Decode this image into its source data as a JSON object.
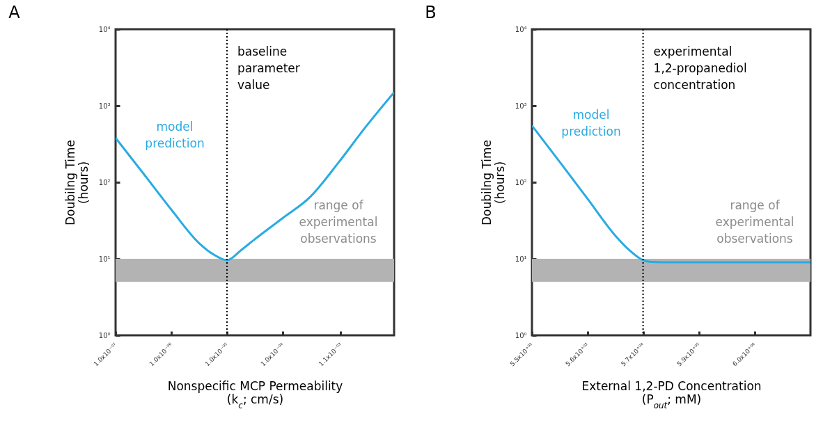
{
  "chart_data": [
    {
      "type": "line",
      "title": "A",
      "xlabel": "Nonspecific MCP Permeability\n(k$_{c}$; cm/s)",
      "ylabel": "Doubilng Time\n(hours)",
      "log": "xy",
      "x": [
        1e-07,
        3.16e-07,
        1e-06,
        3.16e-06,
        5.6e-06,
        1e-05,
        1.8e-05,
        3.16e-05,
        0.0001,
        0.000316,
        0.001,
        0.00316,
        0.01
      ],
      "series": [
        {
          "name": "model prediction",
          "color": "#29abe2",
          "values": [
            380,
            130,
            44,
            16,
            11.5,
            9.6,
            13,
            18,
            34,
            65,
            180,
            540,
            1500
          ]
        }
      ],
      "xlim": [
        1e-07,
        0.01
      ],
      "ylim": [
        1,
        10000
      ],
      "xticks": [
        {
          "value": 1e-07,
          "label": "1.0x10⁻⁰⁷"
        },
        {
          "value": 1e-06,
          "label": "1.0x10⁻⁰⁶"
        },
        {
          "value": 1e-05,
          "label": "1.0x10⁻⁰⁵"
        },
        {
          "value": 0.0001,
          "label": "1.0x10⁻⁰⁴"
        },
        {
          "value": 0.0011,
          "label": "1.1x10⁻⁰³"
        }
      ],
      "yticks": [
        {
          "value": 1,
          "label": "10⁰"
        },
        {
          "value": 10,
          "label": "10¹"
        },
        {
          "value": 100,
          "label": "10²"
        },
        {
          "value": 1000,
          "label": "10³"
        },
        {
          "value": 10000,
          "label": "10⁴"
        }
      ],
      "bands": [
        {
          "axis": "y",
          "from": 5,
          "to": 10,
          "label": "range of\nexperimental\nobservations",
          "color": "#b3b3b3"
        }
      ],
      "ref_lines": [
        {
          "axis": "x",
          "value": 1e-05,
          "label": "baseline\nparameter\nvalue",
          "line_style": "dotted"
        }
      ]
    },
    {
      "type": "line",
      "title": "B",
      "xlabel": "External 1,2-PD Concentration\n(P$_{out}$; mM)",
      "ylabel": "Doubilng Time\n(hours)",
      "log": "xy",
      "x": [
        550,
        1800,
        5600,
        18000,
        32000,
        57000,
        80000,
        200000,
        1000000,
        62000000.0
      ],
      "series": [
        {
          "name": "model prediction",
          "color": "#29abe2",
          "values": [
            550,
            180,
            61,
            20,
            13,
            9.6,
            9.1,
            9,
            9,
            9
          ]
        }
      ],
      "xlim": [
        550,
        62000000.0
      ],
      "ylim": [
        1,
        10000
      ],
      "xticks": [
        {
          "value": 550,
          "label": "5.5x10⁺⁰²"
        },
        {
          "value": 5600,
          "label": "5.6x10⁺⁰³"
        },
        {
          "value": 57000,
          "label": "5.7x10⁺⁰⁴"
        },
        {
          "value": 590000,
          "label": "5.9x10⁺⁰⁵"
        },
        {
          "value": 6000000,
          "label": "6.0x10⁺⁰⁶"
        }
      ],
      "yticks": [
        {
          "value": 1,
          "label": "10⁰"
        },
        {
          "value": 10,
          "label": "10¹"
        },
        {
          "value": 100,
          "label": "10²"
        },
        {
          "value": 1000,
          "label": "10³"
        },
        {
          "value": 10000,
          "label": "10⁴"
        }
      ],
      "bands": [
        {
          "axis": "y",
          "from": 5,
          "to": 10,
          "label": "range of\nexperimental\nobservations",
          "color": "#b3b3b3"
        }
      ],
      "ref_lines": [
        {
          "axis": "x",
          "value": 57000,
          "label": "experimental\n1,2-propanediol\nconcentration",
          "line_style": "dotted"
        }
      ]
    }
  ]
}
